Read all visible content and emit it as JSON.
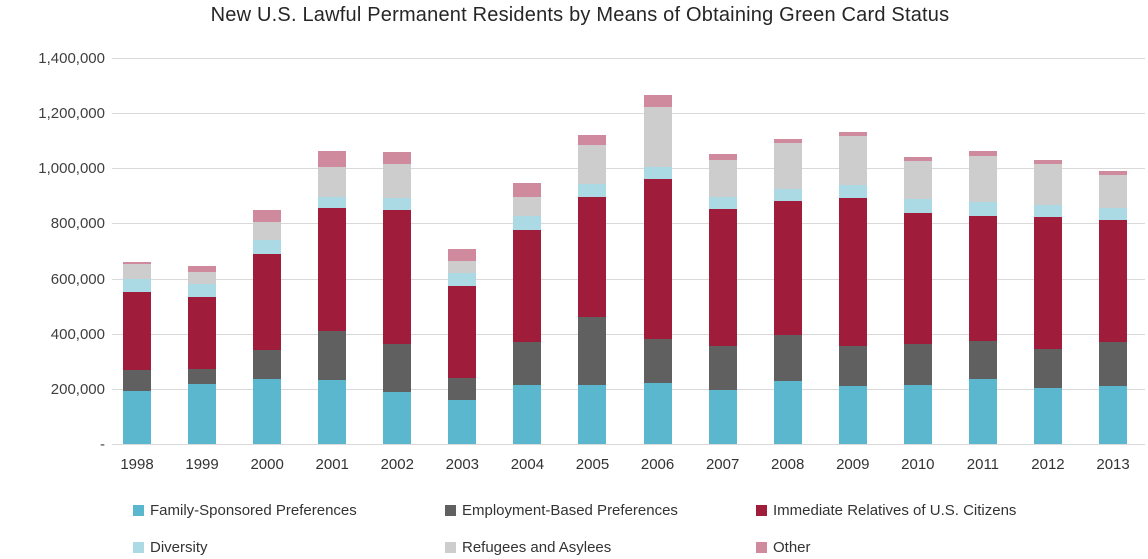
{
  "title": "New U.S. Lawful Permanent Residents by Means of Obtaining Green Card Status",
  "chart_data": {
    "type": "bar",
    "stacked": true,
    "title": "New U.S. Lawful Permanent Residents by Means of Obtaining Green Card Status",
    "xlabel": "",
    "ylabel": "",
    "ylim": [
      0,
      1400000
    ],
    "ytick_step": 200000,
    "ytick_labels": [
      "-",
      "200,000",
      "400,000",
      "600,000",
      "800,000",
      "1,000,000",
      "1,200,000",
      "1,400,000"
    ],
    "grid": true,
    "gridline_color": "#d9d9d9",
    "legend_position": "bottom",
    "categories": [
      "1998",
      "1999",
      "2000",
      "2001",
      "2002",
      "2003",
      "2004",
      "2005",
      "2006",
      "2007",
      "2008",
      "2009",
      "2010",
      "2011",
      "2012",
      "2013"
    ],
    "series": [
      {
        "name": "Family-Sponsored Preferences",
        "color": "#5bb7cd",
        "values": [
          191480,
          216883,
          235092,
          232143,
          187069,
          158894,
          214355,
          212970,
          222229,
          194900,
          227761,
          211859,
          214589,
          234931,
          202019,
          210303
        ]
      },
      {
        "name": "Employment-Based Preferences",
        "color": "#606060",
        "values": [
          77517,
          56817,
          107024,
          179195,
          174968,
          82137,
          155330,
          246878,
          159081,
          162176,
          166511,
          144034,
          148343,
          139339,
          143998,
          161110
        ]
      },
      {
        "name": "Immediate Relatives of U.S. Citizens",
        "color": "#a01c3b",
        "values": [
          283368,
          258584,
          347870,
          443035,
          485960,
          332657,
          406074,
          436231,
          580348,
          494920,
          488483,
          535554,
          476414,
          453158,
          478780,
          439460
        ]
      },
      {
        "name": "Diversity",
        "color": "#abdae4",
        "values": [
          45499,
          47571,
          50945,
          42015,
          42829,
          46347,
          50084,
          46234,
          44471,
          42127,
          41761,
          47879,
          49763,
          50103,
          40320,
          45618
        ]
      },
      {
        "name": "Refugees and Asylees",
        "color": "#cdcdcd",
        "values": [
          54709,
          42852,
          62620,
          108506,
          126084,
          44927,
          71230,
          142962,
          216454,
          136125,
          166392,
          177368,
          136291,
          168460,
          150614,
          119630
        ]
      },
      {
        "name": "Other",
        "color": "#cf8b9d",
        "values": [
          7904,
          23861,
          46256,
          59424,
          42992,
          40865,
          49069,
          37098,
          43546,
          22167,
          16218,
          14124,
          17225,
          16049,
          15900,
          14432
        ]
      }
    ]
  }
}
